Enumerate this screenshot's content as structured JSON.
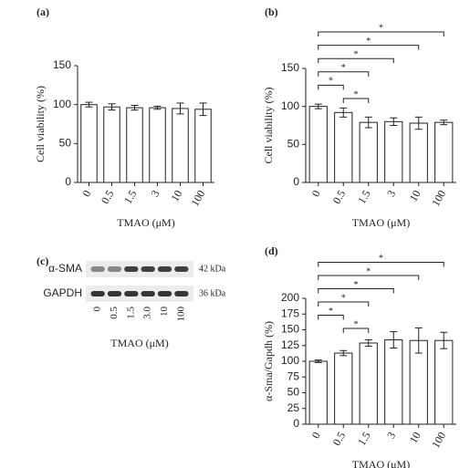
{
  "chart_data": [
    {
      "type": "bar",
      "panel_label": "(a)",
      "ylabel": "Cell viability (%)",
      "xlabel": "TMAO (μM)",
      "categories": [
        "0",
        "0.5",
        "1.5",
        "3",
        "10",
        "100"
      ],
      "values": [
        100,
        97,
        96,
        96,
        95,
        94
      ],
      "errors": [
        3,
        4,
        3,
        2,
        7,
        8
      ],
      "ylim": [
        0,
        150
      ],
      "yticks": [
        0,
        50,
        100,
        150
      ],
      "color": "#ffffff"
    },
    {
      "type": "bar",
      "panel_label": "(b)",
      "ylabel": "Cell viability (%)",
      "xlabel": "TMAO (μM)",
      "categories": [
        "0",
        "0.5",
        "1.5",
        "3",
        "10",
        "100"
      ],
      "values": [
        100,
        92,
        79,
        80,
        78,
        79
      ],
      "errors": [
        3,
        6,
        7,
        5,
        8,
        3
      ],
      "ylim": [
        0,
        150
      ],
      "yticks": [
        0,
        50,
        100,
        150
      ],
      "color": "#ffffff",
      "annotations": [
        {
          "from": "0.5",
          "to": "1.5",
          "label": "*"
        },
        {
          "from": "0",
          "to": "0.5",
          "label": "*"
        },
        {
          "from": "0",
          "to": "1.5",
          "label": "*"
        },
        {
          "from": "0",
          "to": "3",
          "label": "*"
        },
        {
          "from": "0",
          "to": "10",
          "label": "*"
        },
        {
          "from": "0",
          "to": "100",
          "label": "*"
        }
      ]
    },
    {
      "type": "blot",
      "panel_label": "(c)",
      "xlabel": "TMAO (μM)",
      "categories": [
        "0",
        "0.5",
        "1.5",
        "3.0",
        "10",
        "100"
      ],
      "rows": [
        {
          "name": "α-SMA",
          "size": "42 kDa"
        },
        {
          "name": "GAPDH",
          "size": "36 kDa"
        }
      ]
    },
    {
      "type": "bar",
      "panel_label": "(d)",
      "ylabel": "α-Sma/Gapdh (%)",
      "xlabel": "TMAO (μM)",
      "categories": [
        "0",
        "0.5",
        "1.5",
        "3",
        "10",
        "100"
      ],
      "values": [
        100,
        113,
        129,
        134,
        133,
        133
      ],
      "errors": [
        2,
        4,
        5,
        13,
        20,
        13
      ],
      "ylim": [
        0,
        200
      ],
      "yticks": [
        0,
        25,
        50,
        75,
        100,
        125,
        150,
        175,
        200
      ],
      "color": "#ffffff",
      "annotations": [
        {
          "from": "0.5",
          "to": "1.5",
          "label": "*"
        },
        {
          "from": "0",
          "to": "0.5",
          "label": "*"
        },
        {
          "from": "0",
          "to": "1.5",
          "label": "*"
        },
        {
          "from": "0",
          "to": "3",
          "label": "*"
        },
        {
          "from": "0",
          "to": "10",
          "label": "*"
        },
        {
          "from": "0",
          "to": "100",
          "label": "*"
        }
      ]
    }
  ]
}
